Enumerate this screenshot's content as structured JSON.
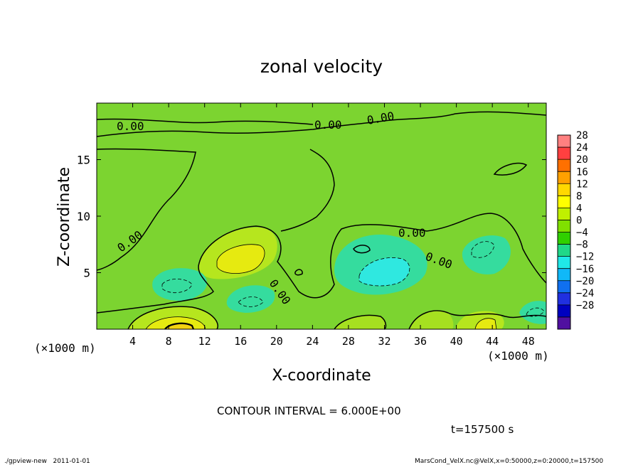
{
  "chart_data": {
    "type": "heatmap",
    "title": "zonal velocity",
    "xlabel": "X-coordinate",
    "ylabel": "Z-coordinate",
    "xunit": "(×1000 m)",
    "xlim": [
      0,
      50
    ],
    "ylim": [
      0,
      20
    ],
    "xticks": [
      "4",
      "8",
      "12",
      "16",
      "20",
      "24",
      "28",
      "32",
      "36",
      "40",
      "44",
      "48"
    ],
    "yticks": [
      "5",
      "10",
      "15"
    ],
    "contour_interval": "CONTOUR INTERVAL = 6.000E+00",
    "contour_labels": [
      "0.00",
      "0.00",
      "0.00",
      "0.00",
      "0.00",
      "0.00",
      "0.00"
    ],
    "time_label": "t=157500 s",
    "colorbar": {
      "levels": [
        "28",
        "24",
        "20",
        "16",
        "12",
        "8",
        "4",
        "0",
        "−4",
        "−8",
        "−12",
        "−16",
        "−20",
        "−24",
        "−28"
      ],
      "colors": [
        "#ff8080",
        "#ff4040",
        "#ff7000",
        "#ffa000",
        "#ffd800",
        "#ffff00",
        "#c0f000",
        "#80e000",
        "#30d000",
        "#20d888",
        "#20e8e8",
        "#10b8f8",
        "#1070f0",
        "#2030e0",
        "#0000c0",
        "#5010a0"
      ]
    },
    "grid": false,
    "legend": "right colorbar"
  },
  "footer": {
    "left": "./gpview-new   2011-01-01",
    "right": "MarsCond_VelX.nc@VelX,x=0:50000,z=0:20000,t=157500"
  },
  "colors": {
    "background_green": "#7cd430",
    "positive_yellowgreen": "#b6e61e",
    "positive_yellow": "#e6ea10",
    "negative_cyan": "#35dc9e",
    "negative_strong": "#2fe8e0"
  }
}
